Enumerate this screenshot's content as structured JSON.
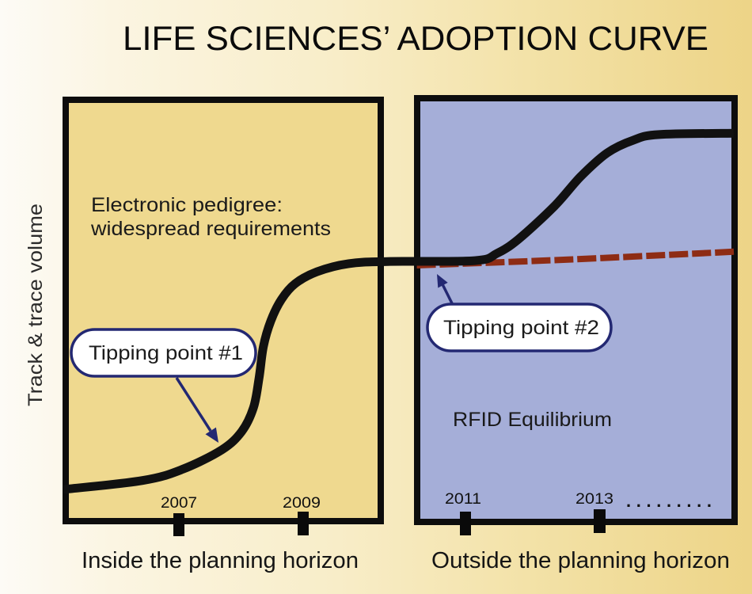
{
  "title": "LIFE SCIENCES’ ADOPTION CURVE",
  "y_axis_label": "Track & trace volume",
  "panels": {
    "inside": {
      "label": "Inside the planning horizon",
      "annotation_lines": [
        "Electronic pedigree:",
        "widespread requirements"
      ],
      "years": [
        "2007",
        "2009"
      ],
      "callout": "Tipping point #1"
    },
    "outside": {
      "label": "Outside the planning horizon",
      "annotation": "RFID Equilibrium",
      "years": [
        "2011",
        "2013"
      ],
      "continuation": ".........",
      "callout": "Tipping point #2"
    }
  },
  "colors": {
    "inside_panel": "#efd98f",
    "outside_panel": "#a5aed8",
    "adoption_curve": "#111111",
    "equilibrium_dashed": "#8e2c14",
    "callout_outline": "#232872"
  },
  "chart_data": {
    "type": "line",
    "title": "LIFE SCIENCES’ ADOPTION CURVE",
    "xlabel": "",
    "ylabel": "Track & trace volume",
    "x_ticks": [
      2007,
      2009,
      2011,
      2013
    ],
    "x_tick_labels": [
      "2007",
      "2009",
      "2011",
      "2013"
    ],
    "x_continuation": ".........",
    "xlim": [
      2005,
      2015
    ],
    "ylim": [
      0,
      100
    ],
    "y_scale_note": "y axis unlabeled; values estimated as relative 0-100",
    "grid": false,
    "legend": null,
    "regions": [
      {
        "name": "Inside the planning horizon",
        "x_range": [
          2005,
          2010.0
        ],
        "color": "#efd98f"
      },
      {
        "name": "Outside the planning horizon",
        "x_range": [
          2010.37,
          2015
        ],
        "color": "#a5aed8"
      }
    ],
    "series": [
      {
        "name": "Adoption curve",
        "style": "solid",
        "color": "#111111",
        "points": [
          [
            2005.0,
            7.8
          ],
          [
            2006.37,
            9.9
          ],
          [
            2007.05,
            12.5
          ],
          [
            2007.69,
            17.1
          ],
          [
            2008.01,
            21.4
          ],
          [
            2008.2,
            27.0
          ],
          [
            2008.29,
            34.0
          ],
          [
            2008.36,
            41.4
          ],
          [
            2008.48,
            47.4
          ],
          [
            2008.65,
            52.4
          ],
          [
            2008.87,
            56.1
          ],
          [
            2009.17,
            58.9
          ],
          [
            2009.56,
            60.8
          ],
          [
            2010.04,
            61.3
          ],
          [
            2011.14,
            61.5
          ],
          [
            2011.47,
            63.2
          ],
          [
            2011.79,
            66.5
          ],
          [
            2012.33,
            74.3
          ],
          [
            2012.72,
            81.2
          ],
          [
            2013.12,
            86.8
          ],
          [
            2013.51,
            89.8
          ],
          [
            2013.89,
            91.1
          ],
          [
            2015.0,
            91.4
          ]
        ]
      },
      {
        "name": "RFID Equilibrium",
        "style": "dashed",
        "color": "#8e2c14",
        "points": [
          [
            2010.4,
            60.4
          ],
          [
            2012.6,
            61.8
          ],
          [
            2015.0,
            63.6
          ]
        ]
      }
    ],
    "annotations": [
      {
        "text": "Electronic pedigree: widespread requirements",
        "x": 2005.5,
        "y": 74
      },
      {
        "text": "Tipping point #1",
        "arrow_to": [
          2007.62,
          19.0
        ]
      },
      {
        "text": "Tipping point #2",
        "arrow_to": [
          2010.65,
          58.4
        ]
      },
      {
        "text": "RFID Equilibrium",
        "x": 2010.8,
        "y": 23
      }
    ]
  }
}
